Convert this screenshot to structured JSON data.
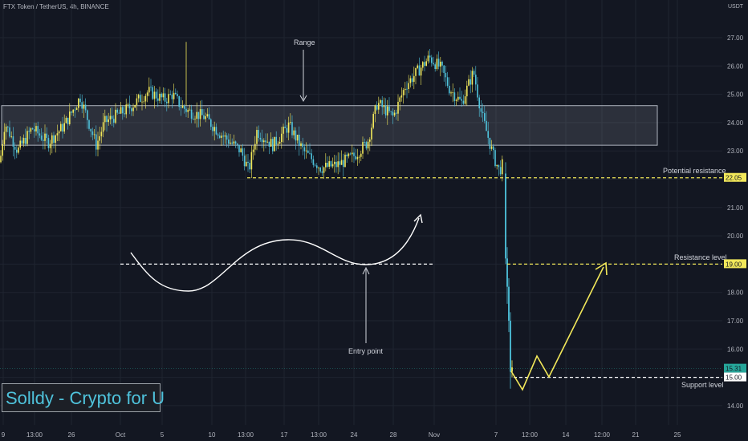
{
  "header": {
    "symbol_line": "FTX Token / TetherUS, 4h, BINANCE"
  },
  "axis": {
    "unit": "USDT"
  },
  "branding": {
    "text": "Solldy - Crypto for U"
  },
  "colors": {
    "background": "#131722",
    "candle_up": "#f2e85a",
    "candle_down": "#4fc3dc",
    "grid": "#1f2430",
    "yellow": "#f2e85a",
    "white": "#ffffff"
  },
  "chart_data": {
    "type": "candlestick",
    "title": "FTX Token / TetherUS, 4h, BINANCE",
    "y_unit": "USDT",
    "ylim": [
      13.5,
      27.6
    ],
    "y_ticks": [
      "27.00",
      "26.00",
      "25.00",
      "24.00",
      "23.00",
      "22.00",
      "21.00",
      "20.00",
      "19.00",
      "18.00",
      "17.00",
      "16.00",
      "15.00",
      "14.00"
    ],
    "x_ticks": [
      "9",
      "13:00",
      "26",
      "Oct",
      "5",
      "10",
      "13:00",
      "17",
      "13:00",
      "24",
      "28",
      "Nov",
      "7",
      "12:00",
      "14",
      "12:00",
      "21",
      "12:00",
      "25"
    ],
    "price_anchors": [
      [
        0,
        22.6
      ],
      [
        6,
        24.0
      ],
      [
        22,
        23.0
      ],
      [
        40,
        23.8
      ],
      [
        60,
        23.3
      ],
      [
        80,
        23.9
      ],
      [
        100,
        24.9
      ],
      [
        120,
        23.2
      ],
      [
        130,
        24.0
      ],
      [
        160,
        24.5
      ],
      [
        185,
        25.1
      ],
      [
        205,
        24.8
      ],
      [
        215,
        25.0
      ],
      [
        225,
        24.6
      ],
      [
        235,
        24.4
      ],
      [
        255,
        24.2
      ],
      [
        275,
        23.6
      ],
      [
        300,
        23.0
      ],
      [
        310,
        22.3
      ],
      [
        320,
        23.7
      ],
      [
        340,
        23.2
      ],
      [
        360,
        23.9
      ],
      [
        378,
        23.0
      ],
      [
        400,
        22.4
      ],
      [
        420,
        22.5
      ],
      [
        440,
        22.8
      ],
      [
        458,
        23.3
      ],
      [
        470,
        24.7
      ],
      [
        490,
        24.2
      ],
      [
        505,
        25.3
      ],
      [
        520,
        25.8
      ],
      [
        535,
        26.3
      ],
      [
        550,
        25.9
      ],
      [
        560,
        25.2
      ],
      [
        575,
        24.7
      ],
      [
        590,
        25.8
      ],
      [
        600,
        24.3
      ],
      [
        615,
        22.8
      ],
      [
        622,
        22.3
      ],
      [
        628,
        22.6
      ]
    ],
    "crash_candles": [
      {
        "x": 630,
        "o": 22.2,
        "h": 22.6,
        "l": 19.0,
        "c": 19.2
      },
      {
        "x": 632,
        "o": 19.2,
        "h": 19.6,
        "l": 17.6,
        "c": 18.2
      },
      {
        "x": 634,
        "o": 18.2,
        "h": 18.5,
        "l": 16.6,
        "c": 17.0
      },
      {
        "x": 636,
        "o": 17.0,
        "h": 17.3,
        "l": 14.6,
        "c": 15.2
      },
      {
        "x": 638,
        "o": 15.2,
        "h": 15.6,
        "l": 15.0,
        "c": 15.35
      }
    ],
    "price_labels": [
      {
        "value": 22.05,
        "text": "22.05",
        "color": "#f2e85a"
      },
      {
        "value": 19.0,
        "text": "19.00",
        "color": "#f2e85a"
      },
      {
        "value": 15.31,
        "text": "15.31",
        "color": "#26a69a"
      },
      {
        "value": 15.0,
        "text": "15.00",
        "color": "#ffffff"
      }
    ],
    "annotations": {
      "range_label": "Range",
      "range_box": {
        "y_top": 24.6,
        "y_bottom": 23.2
      },
      "potential_resistance": {
        "label": "Potential resistance",
        "value": 22.05
      },
      "resistance": {
        "label": "Resistance level",
        "value": 19.0
      },
      "support": {
        "label": "Support level",
        "value": 15.0
      },
      "entry_label": "Entry point"
    }
  }
}
